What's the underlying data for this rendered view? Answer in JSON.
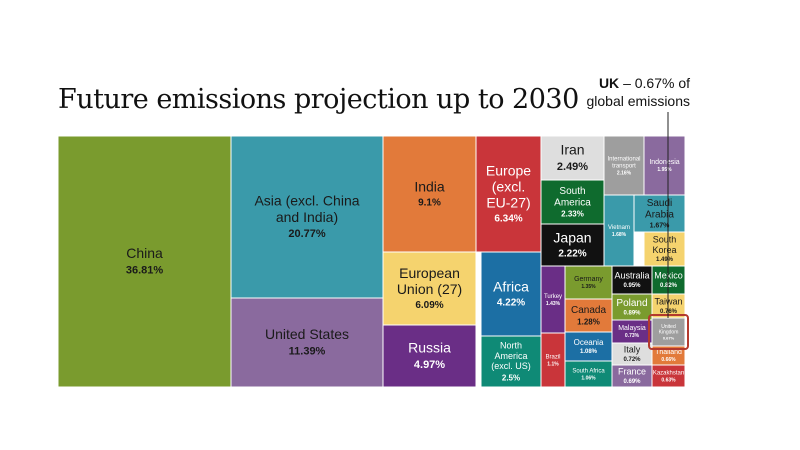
{
  "title": "Future emissions projection up to 2030",
  "annotation": {
    "country": "UK",
    "text": "– 0.67% of global emissions"
  },
  "chart_data": {
    "type": "treemap",
    "title": "Future emissions projection up to 2030",
    "unit": "% of global emissions",
    "highlight": "United Kingdom",
    "items": [
      {
        "name": "China",
        "value": "36.81%",
        "color": "#7a9b2e"
      },
      {
        "name": "Asia (excl. China and India)",
        "value": "20.77%",
        "color": "#3a9aaa"
      },
      {
        "name": "United States",
        "value": "11.39%",
        "color": "#8a6a9e"
      },
      {
        "name": "India",
        "value": "9.1%",
        "color": "#e27a3a"
      },
      {
        "name": "European Union (27)",
        "value": "6.09%",
        "color": "#f5d36e"
      },
      {
        "name": "Russia",
        "value": "4.97%",
        "color": "#6a2e86"
      },
      {
        "name": "Europe (excl. EU-27)",
        "value": "6.34%",
        "color": "#c9353a"
      },
      {
        "name": "Africa",
        "value": "4.22%",
        "color": "#1c6fa4"
      },
      {
        "name": "North America (excl. US)",
        "value": "2.5%",
        "color": "#0f8a76"
      },
      {
        "name": "Iran",
        "value": "2.49%",
        "color": "#dedede"
      },
      {
        "name": "South America",
        "value": "2.33%",
        "color": "#0f6b2e"
      },
      {
        "name": "Japan",
        "value": "2.22%",
        "color": "#111111"
      },
      {
        "name": "Turkey",
        "value": "1.43%",
        "color": "#6a2e86"
      },
      {
        "name": "Germany",
        "value": "1.35%",
        "color": "#7a9b2e"
      },
      {
        "name": "Canada",
        "value": "1.28%",
        "color": "#e27a3a"
      },
      {
        "name": "Oceania",
        "value": "1.08%",
        "color": "#1c6fa4"
      },
      {
        "name": "Brazil",
        "value": "1.1%",
        "color": "#c9353a"
      },
      {
        "name": "South Africa",
        "value": "1.06%",
        "color": "#0f8a76"
      },
      {
        "name": "International transport",
        "value": "2.16%",
        "color": "#9e9e9e"
      },
      {
        "name": "Vietnam",
        "value": "1.68%",
        "color": "#3a9aaa"
      },
      {
        "name": "Indonesia",
        "value": "1.95%",
        "color": "#8a6a9e"
      },
      {
        "name": "Saudi Arabia",
        "value": "1.67%",
        "color": "#3a9aaa"
      },
      {
        "name": "South Korea",
        "value": "1.49%",
        "color": "#f5d36e"
      },
      {
        "name": "Australia",
        "value": "0.95%",
        "color": "#111111"
      },
      {
        "name": "Mexico",
        "value": "0.82%",
        "color": "#0f6b2e"
      },
      {
        "name": "Poland",
        "value": "0.89%",
        "color": "#7a9b2e"
      },
      {
        "name": "Taiwan",
        "value": "0.76%",
        "color": "#f5d36e"
      },
      {
        "name": "Malaysia",
        "value": "0.73%",
        "color": "#6a2e86"
      },
      {
        "name": "United Kingdom",
        "value": "0.67%",
        "color": "#9e9e9e"
      },
      {
        "name": "Italy",
        "value": "0.72%",
        "color": "#dedede"
      },
      {
        "name": "Thailand",
        "value": "0.66%",
        "color": "#e27a3a"
      },
      {
        "name": "France",
        "value": "0.69%",
        "color": "#8a6a9e"
      },
      {
        "name": "Kazakhstan",
        "value": "0.63%",
        "color": "#c9353a"
      }
    ]
  }
}
